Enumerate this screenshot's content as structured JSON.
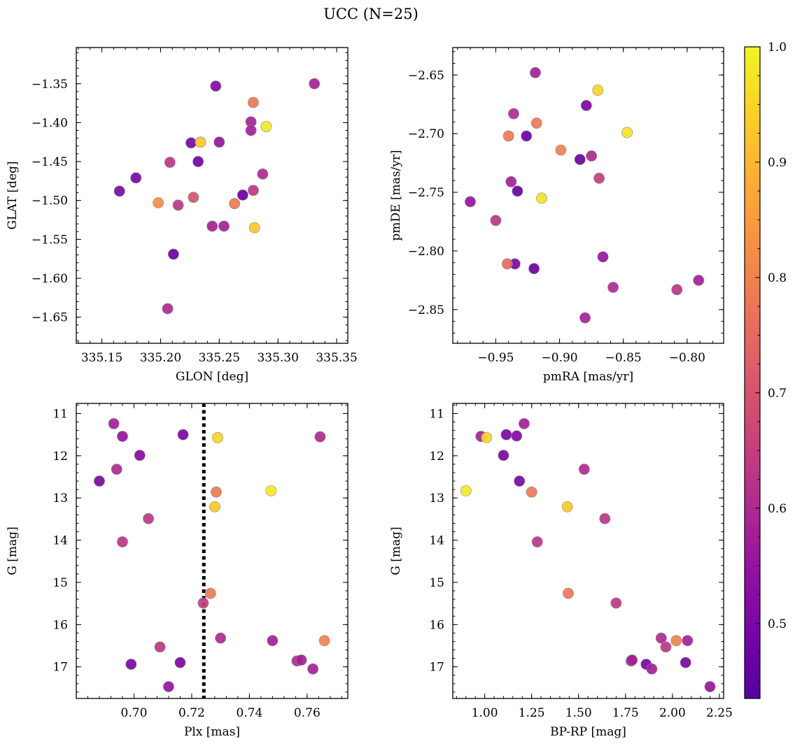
{
  "figure": {
    "title": "UCC (N=25)",
    "colorbar": {
      "colormap": "plasma",
      "range": [
        0.435,
        1.0
      ],
      "ticks": [
        "0.5",
        "0.6",
        "0.7",
        "0.8",
        "0.9",
        "1.0"
      ]
    }
  },
  "chart_data": [
    {
      "type": "scatter",
      "name": "position",
      "title": "",
      "xlabel": "GLON [deg]",
      "ylabel": "GLAT [deg]",
      "xlim": [
        335.1282,
        335.3595
      ],
      "ylim": [
        -1.6835,
        -1.3035
      ],
      "xticks": [
        "335.15",
        "335.20",
        "335.25",
        "335.30",
        "335.35"
      ],
      "yticks": [
        "-1.35",
        "-1.40",
        "-1.45",
        "-1.50",
        "-1.55",
        "-1.60",
        "-1.65"
      ],
      "points": [
        {
          "x": 335.247,
          "y": -1.353,
          "c": 0.52
        },
        {
          "x": 335.331,
          "y": -1.35,
          "c": 0.58
        },
        {
          "x": 335.279,
          "y": -1.374,
          "c": 0.78
        },
        {
          "x": 335.277,
          "y": -1.399,
          "c": 0.58
        },
        {
          "x": 335.29,
          "y": -1.405,
          "c": 0.98
        },
        {
          "x": 335.277,
          "y": -1.41,
          "c": 0.58
        },
        {
          "x": 335.226,
          "y": -1.426,
          "c": 0.5
        },
        {
          "x": 335.234,
          "y": -1.425,
          "c": 0.93
        },
        {
          "x": 335.25,
          "y": -1.425,
          "c": 0.55
        },
        {
          "x": 335.208,
          "y": -1.451,
          "c": 0.63
        },
        {
          "x": 335.232,
          "y": -1.45,
          "c": 0.48
        },
        {
          "x": 335.287,
          "y": -1.466,
          "c": 0.6
        },
        {
          "x": 335.179,
          "y": -1.471,
          "c": 0.5
        },
        {
          "x": 335.165,
          "y": -1.488,
          "c": 0.5
        },
        {
          "x": 335.279,
          "y": -1.487,
          "c": 0.63
        },
        {
          "x": 335.27,
          "y": -1.493,
          "c": 0.47
        },
        {
          "x": 335.228,
          "y": -1.496,
          "c": 0.7
        },
        {
          "x": 335.198,
          "y": -1.503,
          "c": 0.82
        },
        {
          "x": 335.263,
          "y": -1.504,
          "c": 0.78
        },
        {
          "x": 335.215,
          "y": -1.506,
          "c": 0.63
        },
        {
          "x": 335.244,
          "y": -1.533,
          "c": 0.58
        },
        {
          "x": 335.254,
          "y": -1.533,
          "c": 0.58
        },
        {
          "x": 335.28,
          "y": -1.535,
          "c": 0.93
        },
        {
          "x": 335.211,
          "y": -1.569,
          "c": 0.47
        },
        {
          "x": 335.206,
          "y": -1.639,
          "c": 0.6
        }
      ]
    },
    {
      "type": "scatter",
      "name": "proper-motion",
      "title": "",
      "xlabel": "pmRA [mas/yr]",
      "ylabel": "pmDE [mas/yr]",
      "xlim": [
        -0.9837,
        -0.7714
      ],
      "ylim": [
        -2.8787,
        -2.6266
      ],
      "xticks": [
        "-0.95",
        "-0.90",
        "-0.85",
        "-0.80"
      ],
      "yticks": [
        "-2.65",
        "-2.70",
        "-2.75",
        "-2.80",
        "-2.85"
      ],
      "points": [
        {
          "x": -0.919,
          "y": -2.648,
          "c": 0.58
        },
        {
          "x": -0.87,
          "y": -2.663,
          "c": 0.95
        },
        {
          "x": -0.879,
          "y": -2.676,
          "c": 0.5
        },
        {
          "x": -0.936,
          "y": -2.683,
          "c": 0.6
        },
        {
          "x": -0.918,
          "y": -2.691,
          "c": 0.78
        },
        {
          "x": -0.847,
          "y": -2.699,
          "c": 0.97
        },
        {
          "x": -0.94,
          "y": -2.702,
          "c": 0.78
        },
        {
          "x": -0.926,
          "y": -2.702,
          "c": 0.47
        },
        {
          "x": -0.899,
          "y": -2.714,
          "c": 0.8
        },
        {
          "x": -0.875,
          "y": -2.719,
          "c": 0.6
        },
        {
          "x": -0.884,
          "y": -2.722,
          "c": 0.47
        },
        {
          "x": -0.938,
          "y": -2.741,
          "c": 0.58
        },
        {
          "x": -0.869,
          "y": -2.738,
          "c": 0.65
        },
        {
          "x": -0.933,
          "y": -2.749,
          "c": 0.47
        },
        {
          "x": -0.914,
          "y": -2.755,
          "c": 0.97
        },
        {
          "x": -0.97,
          "y": -2.758,
          "c": 0.55
        },
        {
          "x": -0.95,
          "y": -2.774,
          "c": 0.63
        },
        {
          "x": -0.866,
          "y": -2.805,
          "c": 0.55
        },
        {
          "x": -0.935,
          "y": -2.811,
          "c": 0.5
        },
        {
          "x": -0.941,
          "y": -2.811,
          "c": 0.75
        },
        {
          "x": -0.92,
          "y": -2.815,
          "c": 0.47
        },
        {
          "x": -0.791,
          "y": -2.825,
          "c": 0.58
        },
        {
          "x": -0.858,
          "y": -2.831,
          "c": 0.6
        },
        {
          "x": -0.808,
          "y": -2.833,
          "c": 0.63
        },
        {
          "x": -0.88,
          "y": -2.857,
          "c": 0.58
        }
      ]
    },
    {
      "type": "scatter",
      "name": "magnitude-parallax",
      "title": "",
      "xlabel": "Plx [mas]",
      "ylabel": "G [mag]",
      "xlim": [
        0.68,
        0.7741
      ],
      "ylim": [
        17.75,
        10.76
      ],
      "yinverted": true,
      "xticks": [
        "0.70",
        "0.72",
        "0.74",
        "0.76"
      ],
      "yticks": [
        "11",
        "12",
        "13",
        "14",
        "15",
        "16",
        "17"
      ],
      "vline": {
        "x": 0.7242,
        "style": "dotted",
        "color": "#000000"
      },
      "points": [
        {
          "x": 0.693,
          "y": 11.24,
          "c": 0.58
        },
        {
          "x": 0.696,
          "y": 11.54,
          "c": 0.55
        },
        {
          "x": 0.717,
          "y": 11.5,
          "c": 0.5
        },
        {
          "x": 0.729,
          "y": 11.57,
          "c": 0.95
        },
        {
          "x": 0.7645,
          "y": 11.55,
          "c": 0.6
        },
        {
          "x": 0.702,
          "y": 11.99,
          "c": 0.52
        },
        {
          "x": 0.694,
          "y": 12.32,
          "c": 0.6
        },
        {
          "x": 0.688,
          "y": 12.6,
          "c": 0.5
        },
        {
          "x": 0.7285,
          "y": 12.86,
          "c": 0.78
        },
        {
          "x": 0.7475,
          "y": 12.83,
          "c": 0.98
        },
        {
          "x": 0.728,
          "y": 13.21,
          "c": 0.93
        },
        {
          "x": 0.705,
          "y": 13.49,
          "c": 0.63
        },
        {
          "x": 0.696,
          "y": 14.04,
          "c": 0.63
        },
        {
          "x": 0.7265,
          "y": 15.26,
          "c": 0.78
        },
        {
          "x": 0.724,
          "y": 15.49,
          "c": 0.65
        },
        {
          "x": 0.73,
          "y": 16.32,
          "c": 0.6
        },
        {
          "x": 0.748,
          "y": 16.38,
          "c": 0.58
        },
        {
          "x": 0.766,
          "y": 16.38,
          "c": 0.8
        },
        {
          "x": 0.709,
          "y": 16.53,
          "c": 0.63
        },
        {
          "x": 0.7565,
          "y": 16.86,
          "c": 0.6
        },
        {
          "x": 0.758,
          "y": 16.84,
          "c": 0.58
        },
        {
          "x": 0.716,
          "y": 16.9,
          "c": 0.5
        },
        {
          "x": 0.699,
          "y": 16.94,
          "c": 0.5
        },
        {
          "x": 0.762,
          "y": 17.05,
          "c": 0.58
        },
        {
          "x": 0.712,
          "y": 17.47,
          "c": 0.55
        }
      ]
    },
    {
      "type": "scatter",
      "name": "color-magnitude",
      "title": "",
      "xlabel": "BP-RP [mag]",
      "ylabel": "G [mag]",
      "xlim": [
        0.83,
        2.2725
      ],
      "ylim": [
        17.75,
        10.76
      ],
      "yinverted": true,
      "xticks": [
        "1.00",
        "1.25",
        "1.50",
        "1.75",
        "2.00",
        "2.25"
      ],
      "yticks": [
        "11",
        "12",
        "13",
        "14",
        "15",
        "16",
        "17"
      ],
      "points": [
        {
          "x": 1.21,
          "y": 11.24,
          "c": 0.58
        },
        {
          "x": 0.98,
          "y": 11.54,
          "c": 0.58
        },
        {
          "x": 1.01,
          "y": 11.57,
          "c": 0.95
        },
        {
          "x": 1.115,
          "y": 11.5,
          "c": 0.5
        },
        {
          "x": 1.17,
          "y": 11.53,
          "c": 0.52
        },
        {
          "x": 1.1,
          "y": 11.99,
          "c": 0.5
        },
        {
          "x": 1.53,
          "y": 12.32,
          "c": 0.6
        },
        {
          "x": 1.185,
          "y": 12.6,
          "c": 0.5
        },
        {
          "x": 0.9,
          "y": 12.83,
          "c": 0.98
        },
        {
          "x": 1.25,
          "y": 12.86,
          "c": 0.78
        },
        {
          "x": 1.44,
          "y": 13.21,
          "c": 0.93
        },
        {
          "x": 1.64,
          "y": 13.49,
          "c": 0.63
        },
        {
          "x": 1.28,
          "y": 14.04,
          "c": 0.63
        },
        {
          "x": 1.445,
          "y": 15.26,
          "c": 0.78
        },
        {
          "x": 1.7,
          "y": 15.49,
          "c": 0.63
        },
        {
          "x": 1.94,
          "y": 16.32,
          "c": 0.6
        },
        {
          "x": 2.02,
          "y": 16.38,
          "c": 0.8
        },
        {
          "x": 2.08,
          "y": 16.38,
          "c": 0.58
        },
        {
          "x": 1.965,
          "y": 16.53,
          "c": 0.63
        },
        {
          "x": 1.78,
          "y": 16.86,
          "c": 0.6
        },
        {
          "x": 1.785,
          "y": 16.84,
          "c": 0.58
        },
        {
          "x": 2.07,
          "y": 16.9,
          "c": 0.5
        },
        {
          "x": 1.86,
          "y": 16.94,
          "c": 0.5
        },
        {
          "x": 1.89,
          "y": 17.05,
          "c": 0.58
        },
        {
          "x": 2.2,
          "y": 17.47,
          "c": 0.55
        }
      ]
    }
  ]
}
